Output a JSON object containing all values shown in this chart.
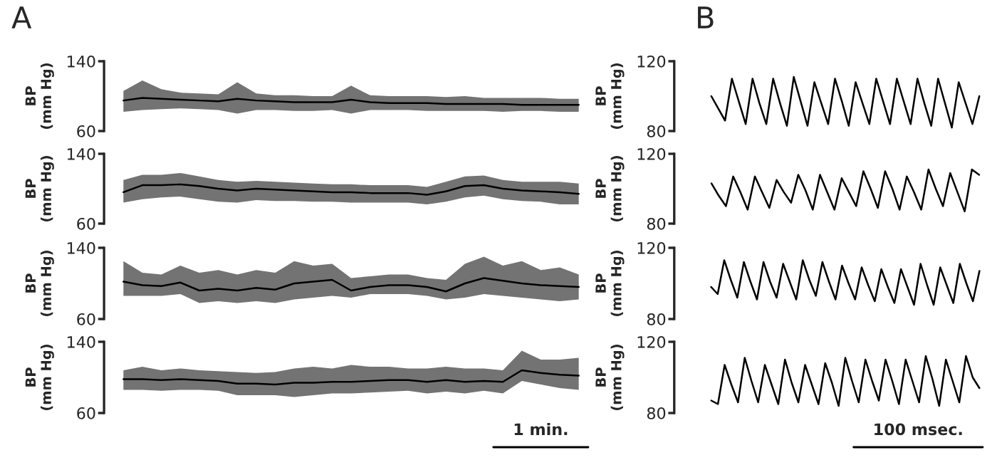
{
  "chart_data": [
    {
      "type": "line",
      "title": "A",
      "ylabel": "BP\n(mm Hg)",
      "ylim": [
        60,
        140
      ],
      "yticks": [
        60,
        140
      ],
      "tick_labels": "y",
      "grid": false,
      "legend": false,
      "categories": [
        null,
        null,
        null,
        null,
        null,
        null,
        null,
        null,
        null,
        null,
        null,
        null,
        null,
        null,
        null,
        null,
        null,
        null,
        null,
        null,
        null,
        null,
        null,
        null,
        null
      ],
      "series": [
        {
          "color": "#000000",
          "values": [
            95,
            98,
            97,
            96,
            95,
            94,
            97,
            95,
            94,
            93,
            93,
            93,
            96,
            93,
            92,
            92,
            92,
            91,
            91,
            91,
            91,
            90,
            90,
            90,
            90
          ],
          "upper": [
            106,
            118,
            108,
            104,
            103,
            102,
            116,
            103,
            101,
            101,
            100,
            100,
            112,
            101,
            100,
            100,
            100,
            99,
            100,
            98,
            98,
            98,
            98,
            97,
            97
          ],
          "lower": [
            82,
            84,
            85,
            86,
            85,
            84,
            80,
            84,
            84,
            83,
            83,
            84,
            80,
            84,
            84,
            84,
            83,
            83,
            83,
            83,
            82,
            83,
            83,
            82,
            82
          ]
        }
      ]
    },
    {
      "type": "line",
      "ylabel": "BP\n(mm Hg)",
      "ylim": [
        60,
        140
      ],
      "yticks": [
        60,
        140
      ],
      "tick_labels": "y",
      "grid": false,
      "legend": false,
      "categories": [
        null,
        null,
        null,
        null,
        null,
        null,
        null,
        null,
        null,
        null,
        null,
        null,
        null,
        null,
        null,
        null,
        null,
        null,
        null,
        null,
        null,
        null,
        null,
        null,
        null
      ],
      "series": [
        {
          "color": "#000000",
          "values": [
            96,
            104,
            104,
            105,
            103,
            100,
            98,
            100,
            99,
            98,
            97,
            96,
            96,
            95,
            95,
            95,
            93,
            97,
            103,
            104,
            100,
            98,
            97,
            96,
            94
          ],
          "upper": [
            110,
            116,
            116,
            118,
            114,
            110,
            108,
            109,
            108,
            107,
            106,
            105,
            105,
            104,
            104,
            104,
            102,
            108,
            114,
            115,
            110,
            108,
            108,
            108,
            106
          ],
          "lower": [
            84,
            88,
            90,
            91,
            88,
            85,
            84,
            87,
            86,
            86,
            85,
            85,
            84,
            84,
            84,
            84,
            82,
            85,
            90,
            92,
            88,
            86,
            85,
            82,
            82
          ]
        }
      ]
    },
    {
      "type": "line",
      "ylabel": "BP\n(mm Hg)",
      "ylim": [
        60,
        140
      ],
      "yticks": [
        60,
        140
      ],
      "tick_labels": "y",
      "grid": false,
      "legend": false,
      "categories": [
        null,
        null,
        null,
        null,
        null,
        null,
        null,
        null,
        null,
        null,
        null,
        null,
        null,
        null,
        null,
        null,
        null,
        null,
        null,
        null,
        null,
        null,
        null,
        null,
        null
      ],
      "series": [
        {
          "color": "#000000",
          "values": [
            102,
            98,
            97,
            101,
            92,
            94,
            92,
            95,
            93,
            100,
            102,
            104,
            92,
            96,
            98,
            98,
            96,
            91,
            100,
            106,
            103,
            100,
            98,
            97,
            96
          ],
          "upper": [
            125,
            112,
            110,
            120,
            112,
            115,
            110,
            115,
            112,
            125,
            120,
            122,
            106,
            108,
            110,
            110,
            106,
            104,
            122,
            130,
            120,
            125,
            115,
            118,
            110
          ],
          "lower": [
            86,
            86,
            86,
            88,
            78,
            80,
            78,
            80,
            78,
            82,
            84,
            86,
            84,
            88,
            88,
            88,
            86,
            82,
            84,
            88,
            86,
            84,
            82,
            80,
            82
          ]
        }
      ]
    },
    {
      "type": "line",
      "ylabel": "BP\n(mm Hg)",
      "ylim": [
        60,
        140
      ],
      "yticks": [
        60,
        140
      ],
      "tick_labels": "y",
      "grid": false,
      "legend": false,
      "annotations": [
        "1 min."
      ],
      "categories": [
        null,
        null,
        null,
        null,
        null,
        null,
        null,
        null,
        null,
        null,
        null,
        null,
        null,
        null,
        null,
        null,
        null,
        null,
        null,
        null,
        null,
        null,
        null,
        null,
        null
      ],
      "series": [
        {
          "color": "#000000",
          "values": [
            98,
            98,
            97,
            98,
            97,
            96,
            93,
            93,
            92,
            94,
            94,
            95,
            95,
            96,
            97,
            97,
            95,
            97,
            95,
            96,
            95,
            108,
            105,
            103,
            102
          ],
          "upper": [
            108,
            112,
            108,
            110,
            108,
            107,
            106,
            105,
            106,
            110,
            112,
            110,
            114,
            112,
            112,
            110,
            110,
            112,
            110,
            110,
            108,
            130,
            120,
            120,
            122
          ],
          "lower": [
            86,
            86,
            85,
            86,
            86,
            85,
            80,
            80,
            80,
            78,
            80,
            82,
            82,
            83,
            84,
            85,
            82,
            84,
            82,
            85,
            82,
            96,
            92,
            88,
            86
          ]
        }
      ]
    },
    {
      "type": "line",
      "title": "B",
      "ylabel": "BP\n(mm Hg)",
      "ylim": [
        80,
        120
      ],
      "yticks": [
        80,
        120
      ],
      "tick_labels": "y",
      "grid": false,
      "legend": false,
      "categories": [
        null,
        null,
        null,
        null,
        null,
        null,
        null,
        null,
        null,
        null,
        null,
        null,
        null,
        null,
        null,
        null,
        null,
        null,
        null,
        null,
        null,
        null,
        null,
        null,
        null,
        null,
        null,
        null,
        null,
        null,
        null,
        null,
        null,
        null,
        null,
        null,
        null,
        null,
        null,
        null
      ],
      "series": [
        {
          "color": "#000000",
          "values": [
            100,
            93,
            86,
            110,
            97,
            84,
            110,
            96,
            84,
            110,
            96,
            83,
            111,
            97,
            83,
            108,
            96,
            84,
            110,
            97,
            83,
            108,
            96,
            84,
            110,
            97,
            84,
            110,
            97,
            84,
            110,
            96,
            83,
            110,
            96,
            82,
            108,
            96,
            84,
            100
          ]
        }
      ]
    },
    {
      "type": "line",
      "ylabel": "BP\n(mm Hg)",
      "ylim": [
        80,
        120
      ],
      "yticks": [
        80,
        120
      ],
      "tick_labels": "y",
      "grid": false,
      "legend": false,
      "categories": [
        null,
        null,
        null,
        null,
        null,
        null,
        null,
        null,
        null,
        null,
        null,
        null,
        null,
        null,
        null,
        null,
        null,
        null,
        null,
        null,
        null,
        null,
        null,
        null,
        null,
        null,
        null,
        null,
        null,
        null,
        null,
        null,
        null,
        null,
        null,
        null,
        null,
        null
      ],
      "series": [
        {
          "color": "#000000",
          "values": [
            103,
            96,
            90,
            107,
            98,
            88,
            107,
            98,
            89,
            105,
            98,
            92,
            108,
            99,
            88,
            108,
            98,
            88,
            106,
            98,
            90,
            110,
            100,
            89,
            110,
            100,
            88,
            107,
            98,
            88,
            111,
            100,
            90,
            109,
            98,
            87,
            111,
            108
          ]
        }
      ]
    },
    {
      "type": "line",
      "ylabel": "BP\n(mm Hg)",
      "ylim": [
        80,
        120
      ],
      "yticks": [
        80,
        120
      ],
      "tick_labels": "y",
      "grid": false,
      "legend": false,
      "categories": [
        null,
        null,
        null,
        null,
        null,
        null,
        null,
        null,
        null,
        null,
        null,
        null,
        null,
        null,
        null,
        null,
        null,
        null,
        null,
        null,
        null,
        null,
        null,
        null,
        null,
        null,
        null,
        null,
        null,
        null,
        null,
        null,
        null,
        null,
        null,
        null,
        null,
        null,
        null,
        null,
        null,
        null
      ],
      "series": [
        {
          "color": "#000000",
          "values": [
            98,
            94,
            113,
            102,
            92,
            112,
            101,
            91,
            112,
            101,
            92,
            111,
            101,
            91,
            113,
            102,
            93,
            112,
            101,
            91,
            110,
            100,
            91,
            109,
            99,
            90,
            108,
            98,
            89,
            108,
            98,
            88,
            111,
            99,
            88,
            109,
            99,
            89,
            111,
            100,
            90,
            107
          ]
        }
      ]
    },
    {
      "type": "line",
      "ylabel": "BP\n(mm Hg)",
      "ylim": [
        80,
        120
      ],
      "yticks": [
        80,
        120
      ],
      "tick_labels": "y",
      "grid": false,
      "legend": false,
      "annotations": [
        "100 msec."
      ],
      "categories": [
        null,
        null,
        null,
        null,
        null,
        null,
        null,
        null,
        null,
        null,
        null,
        null,
        null,
        null,
        null,
        null,
        null,
        null,
        null,
        null,
        null,
        null,
        null,
        null,
        null,
        null,
        null,
        null,
        null,
        null,
        null,
        null,
        null,
        null,
        null,
        null,
        null,
        null,
        null,
        null,
        null
      ],
      "series": [
        {
          "color": "#000000",
          "values": [
            87,
            85,
            107,
            96,
            86,
            111,
            98,
            86,
            107,
            96,
            85,
            110,
            97,
            86,
            107,
            96,
            85,
            108,
            97,
            84,
            111,
            98,
            86,
            110,
            98,
            87,
            110,
            98,
            85,
            110,
            98,
            86,
            112,
            99,
            84,
            110,
            98,
            86,
            112,
            100,
            94
          ]
        }
      ]
    }
  ]
}
